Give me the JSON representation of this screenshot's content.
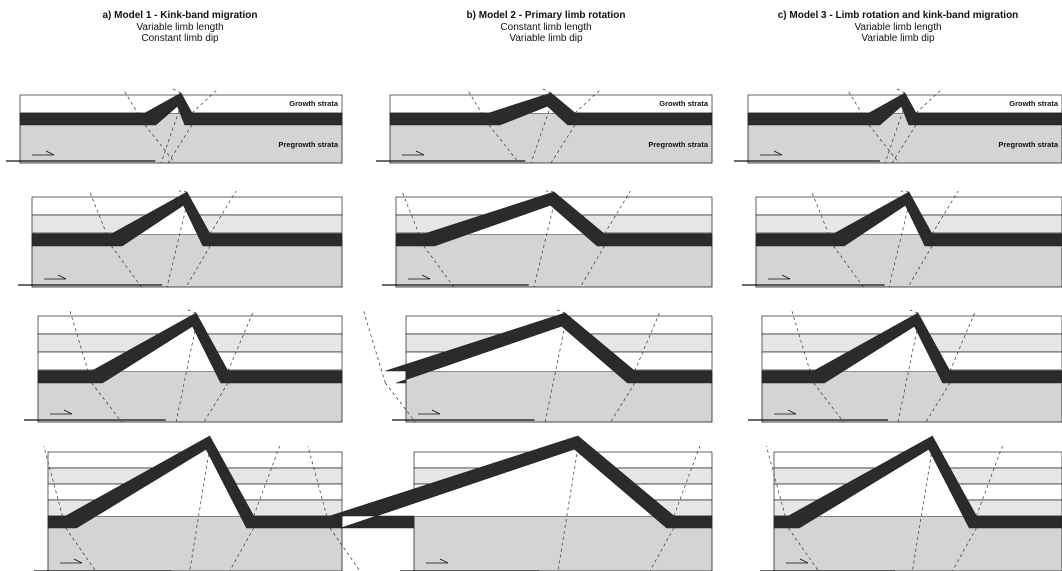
{
  "columns": [
    {
      "title": "a) Model 1 - Kink-band migration",
      "subtitle_1": "Variable limb length",
      "subtitle_2": "Constant limb dip"
    },
    {
      "title": "b) Model 2 - Primary limb rotation",
      "subtitle_1": "Constant limb length",
      "subtitle_2": "Variable limb dip"
    },
    {
      "title": "c) Model 3 - Limb rotation and kink-band migration",
      "subtitle_1": "Variable limb length",
      "subtitle_2": "Variable limb dip"
    }
  ],
  "labels": {
    "growth": "Growth strata",
    "pregrowth": "Pregrowth strata"
  },
  "colors": {
    "competent_bed": "#2b2b2b",
    "pregrowth_fill": "#d4d4d4",
    "growth_band_alt": "#e6e6e6",
    "growth_band": "#ffffff",
    "outline": "#222222"
  },
  "icons": [
    "fault-slip-arrow-icon"
  ]
}
